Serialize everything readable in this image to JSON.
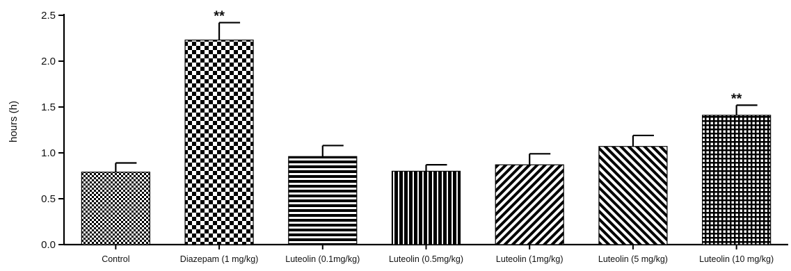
{
  "chart_data": {
    "type": "bar",
    "title": "",
    "xlabel": "",
    "ylabel": "hours (h)",
    "ylim": [
      0,
      2.5
    ],
    "yticks": [
      "0.0",
      "0.5",
      "1.0",
      "1.5",
      "2.0",
      "2.5"
    ],
    "categories": [
      "Control",
      "Diazepam (1 mg/kg)",
      "Luteolin (0.1mg/kg)",
      "Luteolin (0.5mg/kg)",
      "Luteolin (1mg/kg)",
      "Luteolin (5 mg/kg)",
      "Luteolin (10 mg/kg)"
    ],
    "values": [
      0.79,
      2.23,
      0.96,
      0.8,
      0.87,
      1.07,
      1.41
    ],
    "errors": [
      0.1,
      0.19,
      0.12,
      0.07,
      0.12,
      0.12,
      0.11
    ],
    "significance": [
      "",
      "**",
      "",
      "",
      "",
      "",
      "**"
    ],
    "patterns": [
      "fine-checker",
      "coarse-checker",
      "horizontal-lines",
      "vertical-lines",
      "diagonal-forward",
      "diagonal-back",
      "grid"
    ],
    "grid": false,
    "legend": "none",
    "color": "#000000"
  }
}
